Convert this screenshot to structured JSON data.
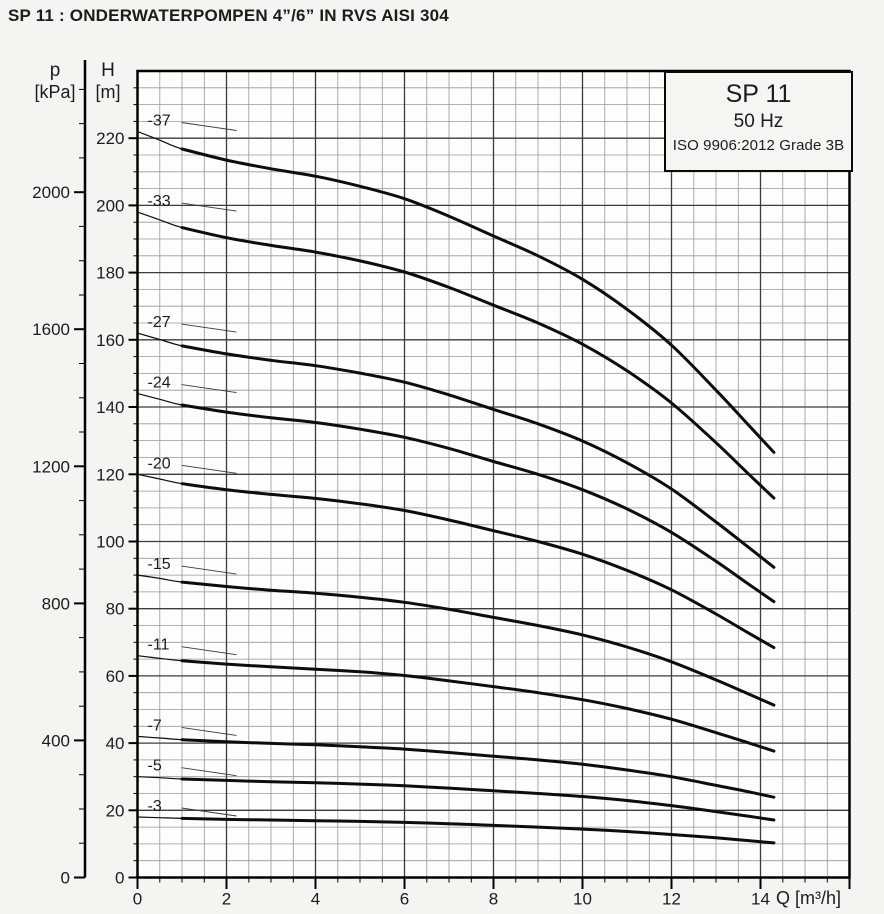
{
  "page_title": "SP 11 : ONDERWATERPOMPEN 4”/6” IN RVS AISI 304",
  "legend": {
    "model": "SP 11",
    "frequency": "50 Hz",
    "standard": "ISO 9906:2012 Grade 3B"
  },
  "axes": {
    "p": {
      "title_line1": "p",
      "title_line2": "[kPa]",
      "ticks": [
        0,
        400,
        800,
        1200,
        1600,
        2000
      ],
      "minor_step": 100,
      "max": 2300
    },
    "h": {
      "title_line1": "H",
      "title_line2": "[m]",
      "ticks": [
        0,
        20,
        40,
        60,
        80,
        100,
        120,
        140,
        160,
        180,
        200,
        220
      ],
      "minor_step": 5,
      "max": 240
    },
    "q": {
      "title": "Q [m³/h]",
      "ticks": [
        0,
        2,
        4,
        6,
        8,
        10,
        12,
        14
      ],
      "minor_step": 0.5,
      "max": 16
    }
  },
  "colors": {
    "curve": "#0d0d0d",
    "grid_minor": "#989898",
    "grid_major": "#3c3c3c",
    "frame": "#000000",
    "text": "#1c1c1c",
    "plot_bg": "#fdfdfb"
  },
  "chart_data": {
    "type": "line",
    "title": "SP 11 pump performance curves (head vs. flow)",
    "xlabel": "Q [m³/h]",
    "ylabel": "H [m]",
    "ylabel_secondary": "p [kPa]",
    "xlim": [
      0,
      16
    ],
    "ylim": [
      0,
      240
    ],
    "ylim_secondary_kpa": [
      0,
      2300
    ],
    "grid": true,
    "legend_position": "top-right",
    "curve_labels_position": "at Q=0 above each curve start",
    "x": [
      0,
      0.5,
      1,
      2,
      3,
      4,
      5,
      6,
      7,
      8,
      9,
      10,
      11,
      12,
      13,
      13.7,
      14.3
    ],
    "series": [
      {
        "name": "-37",
        "stages": 37,
        "values": [
          222.0,
          219.4,
          216.8,
          213.5,
          210.9,
          208.7,
          205.7,
          202.0,
          196.8,
          190.9,
          185.0,
          178.0,
          169.1,
          158.4,
          145.0,
          135.1,
          126.5
        ]
      },
      {
        "name": "-33",
        "stages": 33,
        "values": [
          198.0,
          195.7,
          193.4,
          190.4,
          188.1,
          186.1,
          183.5,
          180.2,
          175.6,
          170.3,
          165.0,
          158.7,
          150.8,
          141.2,
          129.4,
          120.5,
          112.9
        ]
      },
      {
        "name": "-27",
        "stages": 27,
        "values": [
          162.0,
          160.1,
          158.2,
          155.8,
          153.9,
          152.3,
          150.1,
          147.4,
          143.6,
          139.3,
          135.0,
          129.9,
          123.4,
          115.6,
          105.8,
          98.6,
          92.3
        ]
      },
      {
        "name": "-24",
        "stages": 24,
        "values": [
          144.0,
          142.3,
          140.6,
          138.5,
          136.8,
          135.4,
          133.4,
          131.0,
          127.7,
          123.8,
          120.0,
          115.4,
          109.7,
          102.7,
          94.1,
          87.6,
          82.1
        ]
      },
      {
        "name": "-20",
        "stages": 20,
        "values": [
          120.0,
          118.6,
          117.2,
          115.4,
          114.0,
          112.8,
          111.2,
          109.2,
          106.4,
          103.2,
          100.0,
          96.2,
          91.4,
          85.6,
          78.4,
          73.0,
          68.4
        ]
      },
      {
        "name": "-15",
        "stages": 15,
        "values": [
          90.0,
          89.0,
          87.9,
          86.6,
          85.5,
          84.6,
          83.4,
          81.9,
          79.8,
          77.4,
          75.0,
          72.2,
          68.6,
          64.2,
          58.8,
          54.8,
          51.3
        ]
      },
      {
        "name": "-11",
        "stages": 11,
        "values": [
          66.0,
          65.2,
          64.5,
          63.5,
          62.7,
          62.0,
          61.2,
          60.1,
          58.5,
          56.8,
          55.0,
          52.9,
          50.3,
          47.1,
          43.1,
          40.2,
          37.6
        ]
      },
      {
        "name": "-7",
        "stages": 7,
        "values": [
          42.0,
          41.5,
          41.0,
          40.4,
          39.9,
          39.5,
          38.9,
          38.2,
          37.2,
          36.1,
          35.0,
          33.7,
          32.0,
          30.0,
          27.4,
          25.6,
          23.9
        ]
      },
      {
        "name": "-5",
        "stages": 5,
        "values": [
          30.0,
          29.7,
          29.3,
          28.9,
          28.5,
          28.2,
          27.8,
          27.3,
          26.6,
          25.8,
          25.0,
          24.1,
          22.9,
          21.4,
          19.6,
          18.3,
          17.1
        ]
      },
      {
        "name": "-3",
        "stages": 3,
        "values": [
          18.0,
          17.8,
          17.6,
          17.3,
          17.1,
          16.9,
          16.7,
          16.4,
          16.0,
          15.5,
          15.0,
          14.4,
          13.7,
          12.8,
          11.8,
          11.0,
          10.3
        ]
      }
    ]
  }
}
